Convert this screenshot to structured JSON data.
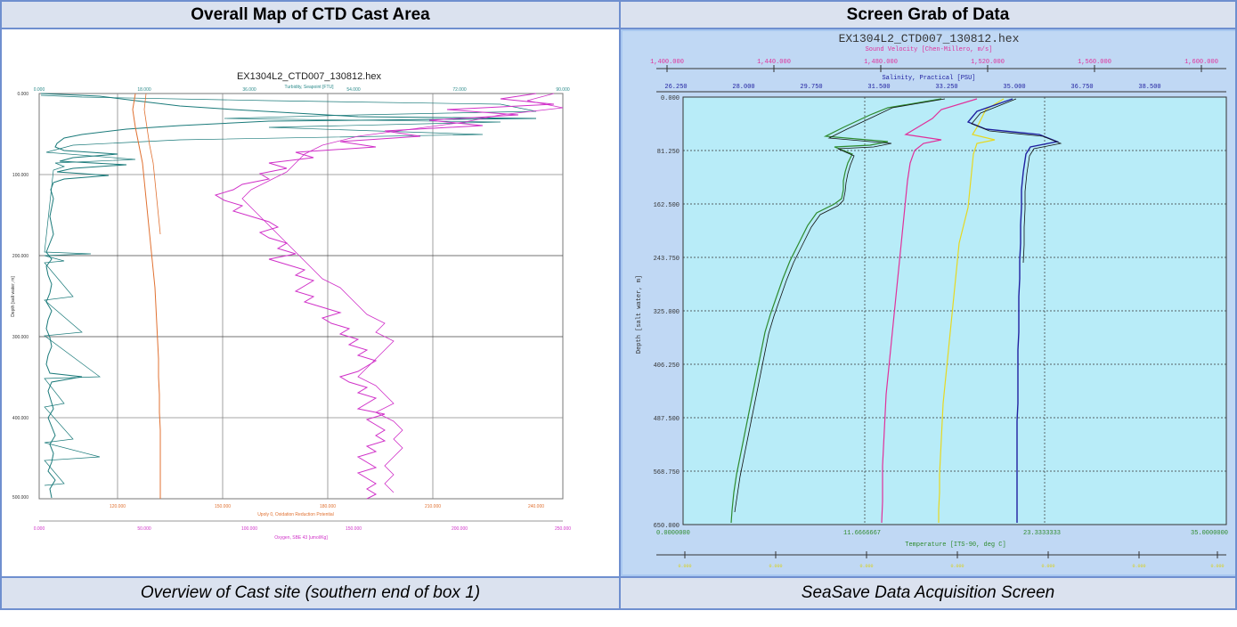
{
  "headers": {
    "left": "Overall Map of CTD Cast Area",
    "right": "Screen Grab of Data"
  },
  "captions": {
    "left": "Overview of Cast site (southern end of box 1)",
    "right": "SeaSave Data Acquisition Screen"
  },
  "left_plot": {
    "title": "EX1304L2_CTD007_130812.hex",
    "top_axis_label": "Turbidity, Seapoint [FTU]",
    "top_ticks": [
      "0.000",
      "18.000",
      "36.000",
      "54.000",
      "72.000",
      "90.000"
    ],
    "depth_label": "Depth [salt water, m]",
    "depth_ticks": [
      "0.000",
      "100.000",
      "200.000",
      "300.000",
      "400.000",
      "500.000"
    ],
    "bottom_axis1_label": "Upoly 0, Oxidation Reduction Potential",
    "bottom_axis1_ticks": [
      "120.000",
      "150.000",
      "180.000",
      "210.000",
      "240.000"
    ],
    "bottom_axis2_label": "Oxygen, SBE 43 [umol/Kg]",
    "bottom_axis2_ticks": [
      "0.000",
      "50.000",
      "100.000",
      "150.000",
      "200.000",
      "250.000"
    ],
    "colors": {
      "turbidity": "#1a7a7a",
      "orp": "#e07030",
      "oxygen": "#d030c8"
    }
  },
  "right_plot": {
    "title": "EX1304L2_CTD007_130812.hex",
    "sv_label": "Sound Velocity [Chen-Millero, m/s]",
    "sv_ticks": [
      "1,400.000",
      "1,440.000",
      "1,480.000",
      "1,520.000",
      "1,560.000",
      "1,600.000"
    ],
    "sal_label": "Salinity, Practical [PSU]",
    "sal_ticks": [
      "26.250",
      "28.000",
      "29.750",
      "31.500",
      "33.250",
      "35.000",
      "36.750",
      "38.500"
    ],
    "depth_label": "Depth [salt water, m]",
    "depth_ticks": [
      "0.000",
      "81.250",
      "162.500",
      "243.750",
      "325.000",
      "406.250",
      "487.500",
      "568.750",
      "650.000"
    ],
    "temp_label": "Temperature [ITS-90, deg C]",
    "temp_ticks": [
      "0.0000000",
      "11.6666667",
      "23.3333333",
      "35.0000000"
    ],
    "colors": {
      "background": "#b8ecf8",
      "frame": "#a8c8f0",
      "sv": "#e0309a",
      "sal": "#2020a0",
      "temp": "#2e8b2e",
      "other": "#e6d820"
    }
  }
}
